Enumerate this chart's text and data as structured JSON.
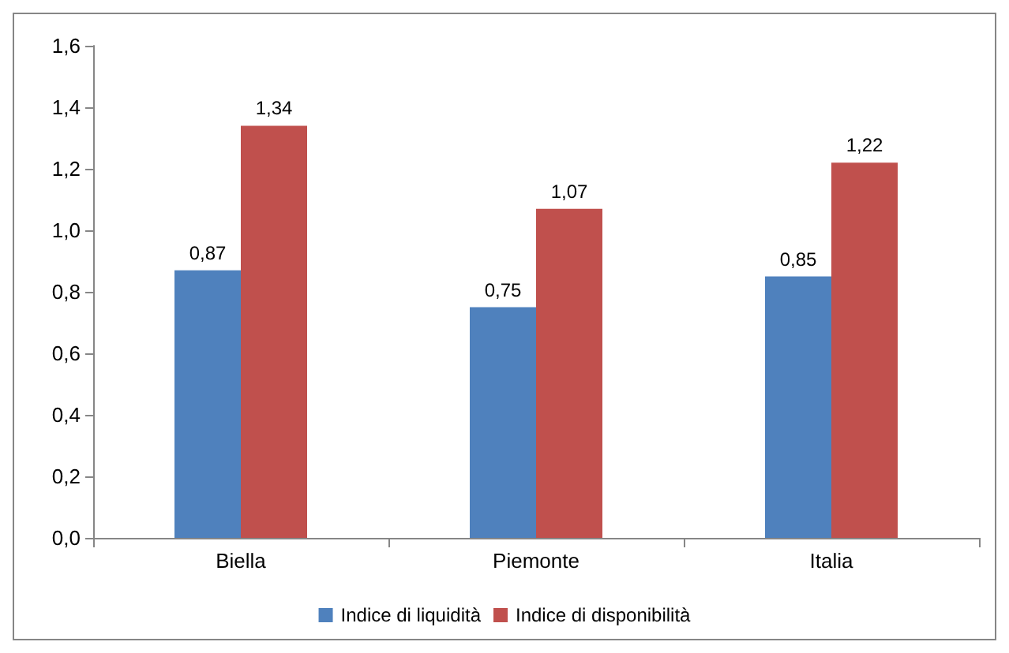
{
  "chart_data": {
    "type": "bar",
    "categories": [
      "Biella",
      "Piemonte",
      "Italia"
    ],
    "series": [
      {
        "name": "Indice di liquidità",
        "color": "#4f81bd",
        "values": [
          0.87,
          0.75,
          0.85
        ],
        "value_labels": [
          "0,87",
          "0,75",
          "0,85"
        ]
      },
      {
        "name": "Indice di disponibilità",
        "color": "#c0504d",
        "values": [
          1.34,
          1.07,
          1.22
        ],
        "value_labels": [
          "1,34",
          "1,07",
          "1,22"
        ]
      }
    ],
    "ylim": [
      0,
      1.6
    ],
    "yticks": [
      {
        "value": 0,
        "label": "0,0"
      },
      {
        "value": 0.2,
        "label": "0,2"
      },
      {
        "value": 0.4,
        "label": "0,4"
      },
      {
        "value": 0.6,
        "label": "0,6"
      },
      {
        "value": 0.8,
        "label": "0,8"
      },
      {
        "value": 1.0,
        "label": "1,0"
      },
      {
        "value": 1.2,
        "label": "1,2"
      },
      {
        "value": 1.4,
        "label": "1,4"
      },
      {
        "value": 1.6,
        "label": "1,6"
      }
    ],
    "grid": false,
    "legend": "bottom"
  }
}
